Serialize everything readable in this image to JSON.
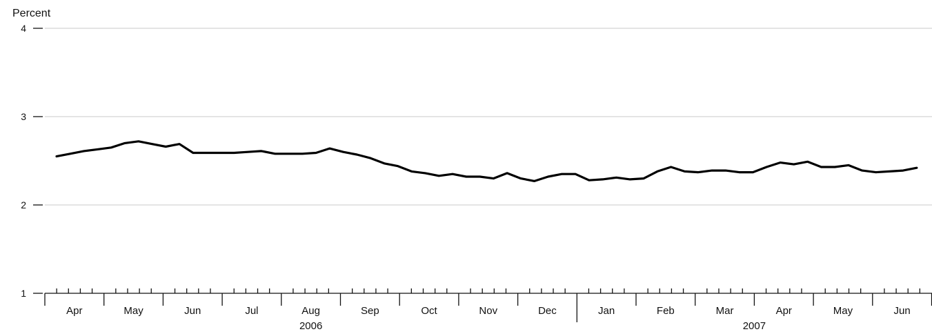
{
  "chart_data": {
    "type": "line",
    "ylabel": "Percent",
    "ylim": [
      1,
      4
    ],
    "yticks": [
      "1",
      "2",
      "3",
      "4"
    ],
    "ytick_values": [
      1,
      2,
      3,
      4
    ],
    "grid": "horizontal",
    "x_months": [
      "Apr",
      "May",
      "Jun",
      "Jul",
      "Aug",
      "Sep",
      "Oct",
      "Nov",
      "Dec",
      "Jan",
      "Feb",
      "Mar",
      "Apr",
      "May",
      "Jun"
    ],
    "x_years": [
      {
        "label": "2006",
        "first_month": 0,
        "last_month": 8
      },
      {
        "label": "2007",
        "first_month": 9,
        "last_month": 14
      }
    ],
    "series": [
      {
        "name": "",
        "color": "#000000",
        "x_start": "2006-04-07",
        "frequency": "weekly",
        "values": [
          2.55,
          2.58,
          2.61,
          2.63,
          2.65,
          2.7,
          2.72,
          2.69,
          2.66,
          2.69,
          2.59,
          2.59,
          2.59,
          2.59,
          2.6,
          2.61,
          2.58,
          2.58,
          2.58,
          2.59,
          2.64,
          2.6,
          2.57,
          2.53,
          2.47,
          2.44,
          2.38,
          2.36,
          2.33,
          2.35,
          2.32,
          2.32,
          2.3,
          2.36,
          2.3,
          2.27,
          2.32,
          2.35,
          2.35,
          2.28,
          2.29,
          2.31,
          2.29,
          2.3,
          2.38,
          2.43,
          2.38,
          2.37,
          2.39,
          2.39,
          2.37,
          2.37,
          2.43,
          2.48,
          2.46,
          2.49,
          2.43,
          2.43,
          2.45,
          2.39,
          2.37,
          2.38,
          2.39,
          2.42
        ]
      }
    ]
  }
}
